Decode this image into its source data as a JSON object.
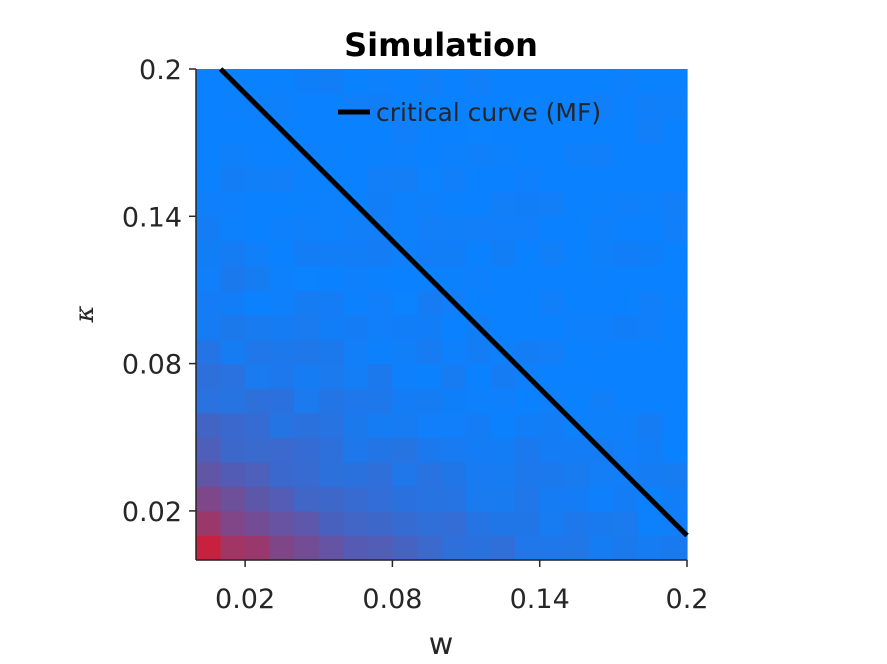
{
  "chart_data": {
    "type": "heatmap",
    "title": "Simulation",
    "xlabel": "w",
    "ylabel": "κ",
    "xlim": [
      0.0,
      0.2
    ],
    "ylim": [
      0.0,
      0.2
    ],
    "xticks": [
      0.02,
      0.08,
      0.14,
      0.2
    ],
    "yticks": [
      0.02,
      0.08,
      0.14,
      0.2
    ],
    "xtick_labels": [
      "0.02",
      "0.08",
      "0.14",
      "0.2"
    ],
    "ytick_labels": [
      "0.02",
      "0.08",
      "0.14",
      "0.2"
    ],
    "grid": false,
    "legend_position": "top-right",
    "colors": {
      "low": "#e8101c",
      "high": "#0a82ff",
      "curve": "#000000"
    },
    "heatmap": {
      "cols": 20,
      "rows": 20
    },
    "series": [
      {
        "name": "critical curve (MF)",
        "type": "line",
        "x": [
          0.01,
          0.2
        ],
        "y": [
          0.2,
          0.01
        ]
      }
    ]
  }
}
